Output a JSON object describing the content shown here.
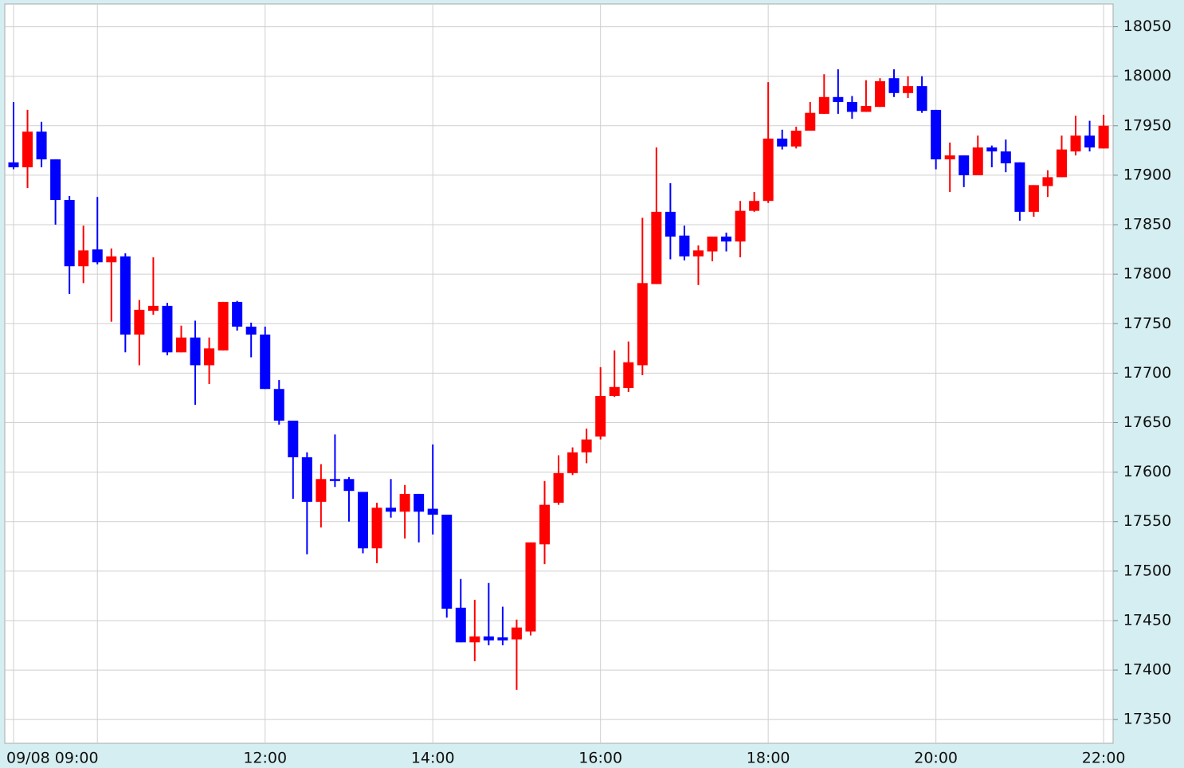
{
  "chart_data": {
    "type": "candlestick",
    "categories": [
      "09/08 09:00",
      null,
      null,
      null,
      null,
      null,
      null,
      null,
      null,
      null,
      null,
      null,
      null,
      null,
      null,
      null,
      null,
      null,
      "12:00",
      null,
      null,
      null,
      null,
      null,
      null,
      null,
      null,
      null,
      null,
      null,
      "14:00",
      null,
      null,
      null,
      null,
      null,
      null,
      null,
      null,
      null,
      null,
      null,
      "16:00",
      null,
      null,
      null,
      null,
      null,
      null,
      null,
      null,
      null,
      null,
      null,
      "18:00",
      null,
      null,
      null,
      null,
      null,
      null,
      null,
      null,
      null,
      null,
      null,
      "20:00",
      null,
      null,
      null,
      null,
      null,
      null,
      null,
      null,
      null,
      null,
      null,
      "22:00"
    ],
    "open": [
      17913,
      17908,
      17944,
      17916,
      17875,
      17808,
      17825,
      17812,
      17818,
      17739,
      17763,
      17768,
      17721,
      17736,
      17708,
      17723,
      17772,
      17747,
      17739,
      17684,
      17652,
      17615,
      17570,
      17593,
      17593,
      17580,
      17523,
      17564,
      17560,
      17578,
      17563,
      17557,
      17463,
      17428,
      17434,
      17433,
      17431,
      17439,
      17527,
      17569,
      17599,
      17620,
      17636,
      17677,
      17685,
      17708,
      17790,
      17863,
      17839,
      17818,
      17823,
      17838,
      17833,
      17864,
      17874,
      17937,
      17929,
      17945,
      17962,
      17979,
      17974,
      17964,
      17969,
      17998,
      17983,
      17990,
      17966,
      17916,
      17920,
      17900,
      17928,
      17924,
      17913,
      17863,
      17889,
      17898,
      17924,
      17940,
      17927
    ],
    "high": [
      17974,
      17966,
      17954,
      17916,
      17879,
      17849,
      17878,
      17826,
      17821,
      17774,
      17817,
      17771,
      17748,
      17753,
      17736,
      17772,
      17773,
      17751,
      17747,
      17693,
      17652,
      17620,
      17608,
      17638,
      17595,
      17580,
      17569,
      17593,
      17587,
      17578,
      17628,
      17557,
      17492,
      17471,
      17488,
      17464,
      17451,
      17529,
      17591,
      17617,
      17625,
      17644,
      17706,
      17723,
      17732,
      17857,
      17928,
      17892,
      17849,
      17829,
      17838,
      17842,
      17874,
      17883,
      17994,
      17946,
      17949,
      17974,
      18002,
      18007,
      17980,
      17996,
      17998,
      18007,
      18000,
      18000,
      17966,
      17933,
      17920,
      17940,
      17930,
      17936,
      17913,
      17890,
      17905,
      17940,
      17960,
      17955,
      17961
    ],
    "low": [
      17906,
      17887,
      17908,
      17850,
      17780,
      17791,
      17810,
      17752,
      17721,
      17708,
      17759,
      17718,
      17721,
      17668,
      17689,
      17723,
      17743,
      17716,
      17684,
      17648,
      17573,
      17517,
      17544,
      17585,
      17550,
      17518,
      17508,
      17554,
      17533,
      17529,
      17537,
      17453,
      17428,
      17409,
      17425,
      17425,
      17380,
      17435,
      17507,
      17567,
      17597,
      17609,
      17633,
      17676,
      17681,
      17698,
      17790,
      17815,
      17814,
      17789,
      17813,
      17823,
      17817,
      17863,
      17872,
      17926,
      17927,
      17945,
      17962,
      17962,
      17957,
      17964,
      17969,
      17979,
      17978,
      17963,
      17906,
      17883,
      17888,
      17900,
      17908,
      17903,
      17854,
      17858,
      17878,
      17898,
      17920,
      17924,
      17927
    ],
    "close": [
      17908,
      17944,
      17916,
      17875,
      17808,
      17824,
      17812,
      17818,
      17739,
      17764,
      17768,
      17721,
      17736,
      17708,
      17725,
      17772,
      17747,
      17739,
      17684,
      17652,
      17615,
      17570,
      17593,
      17591,
      17581,
      17523,
      17564,
      17560,
      17578,
      17560,
      17557,
      17462,
      17428,
      17434,
      17430,
      17430,
      17443,
      17529,
      17567,
      17599,
      17620,
      17633,
      17677,
      17686,
      17711,
      17791,
      17863,
      17838,
      17818,
      17824,
      17838,
      17833,
      17864,
      17874,
      17937,
      17929,
      17945,
      17963,
      17979,
      17974,
      17964,
      17970,
      17995,
      17983,
      17990,
      17965,
      17916,
      17920,
      17900,
      17928,
      17924,
      17912,
      17863,
      17890,
      17898,
      17926,
      17940,
      17928,
      17950
    ],
    "up_color": "#ff0000",
    "down_color": "#0000ff",
    "ylim": [
      17326,
      18073
    ],
    "yticks": [
      17350,
      17400,
      17450,
      17500,
      17550,
      17600,
      17650,
      17700,
      17750,
      17800,
      17850,
      17900,
      17950,
      18000,
      18050
    ],
    "grid": true
  }
}
